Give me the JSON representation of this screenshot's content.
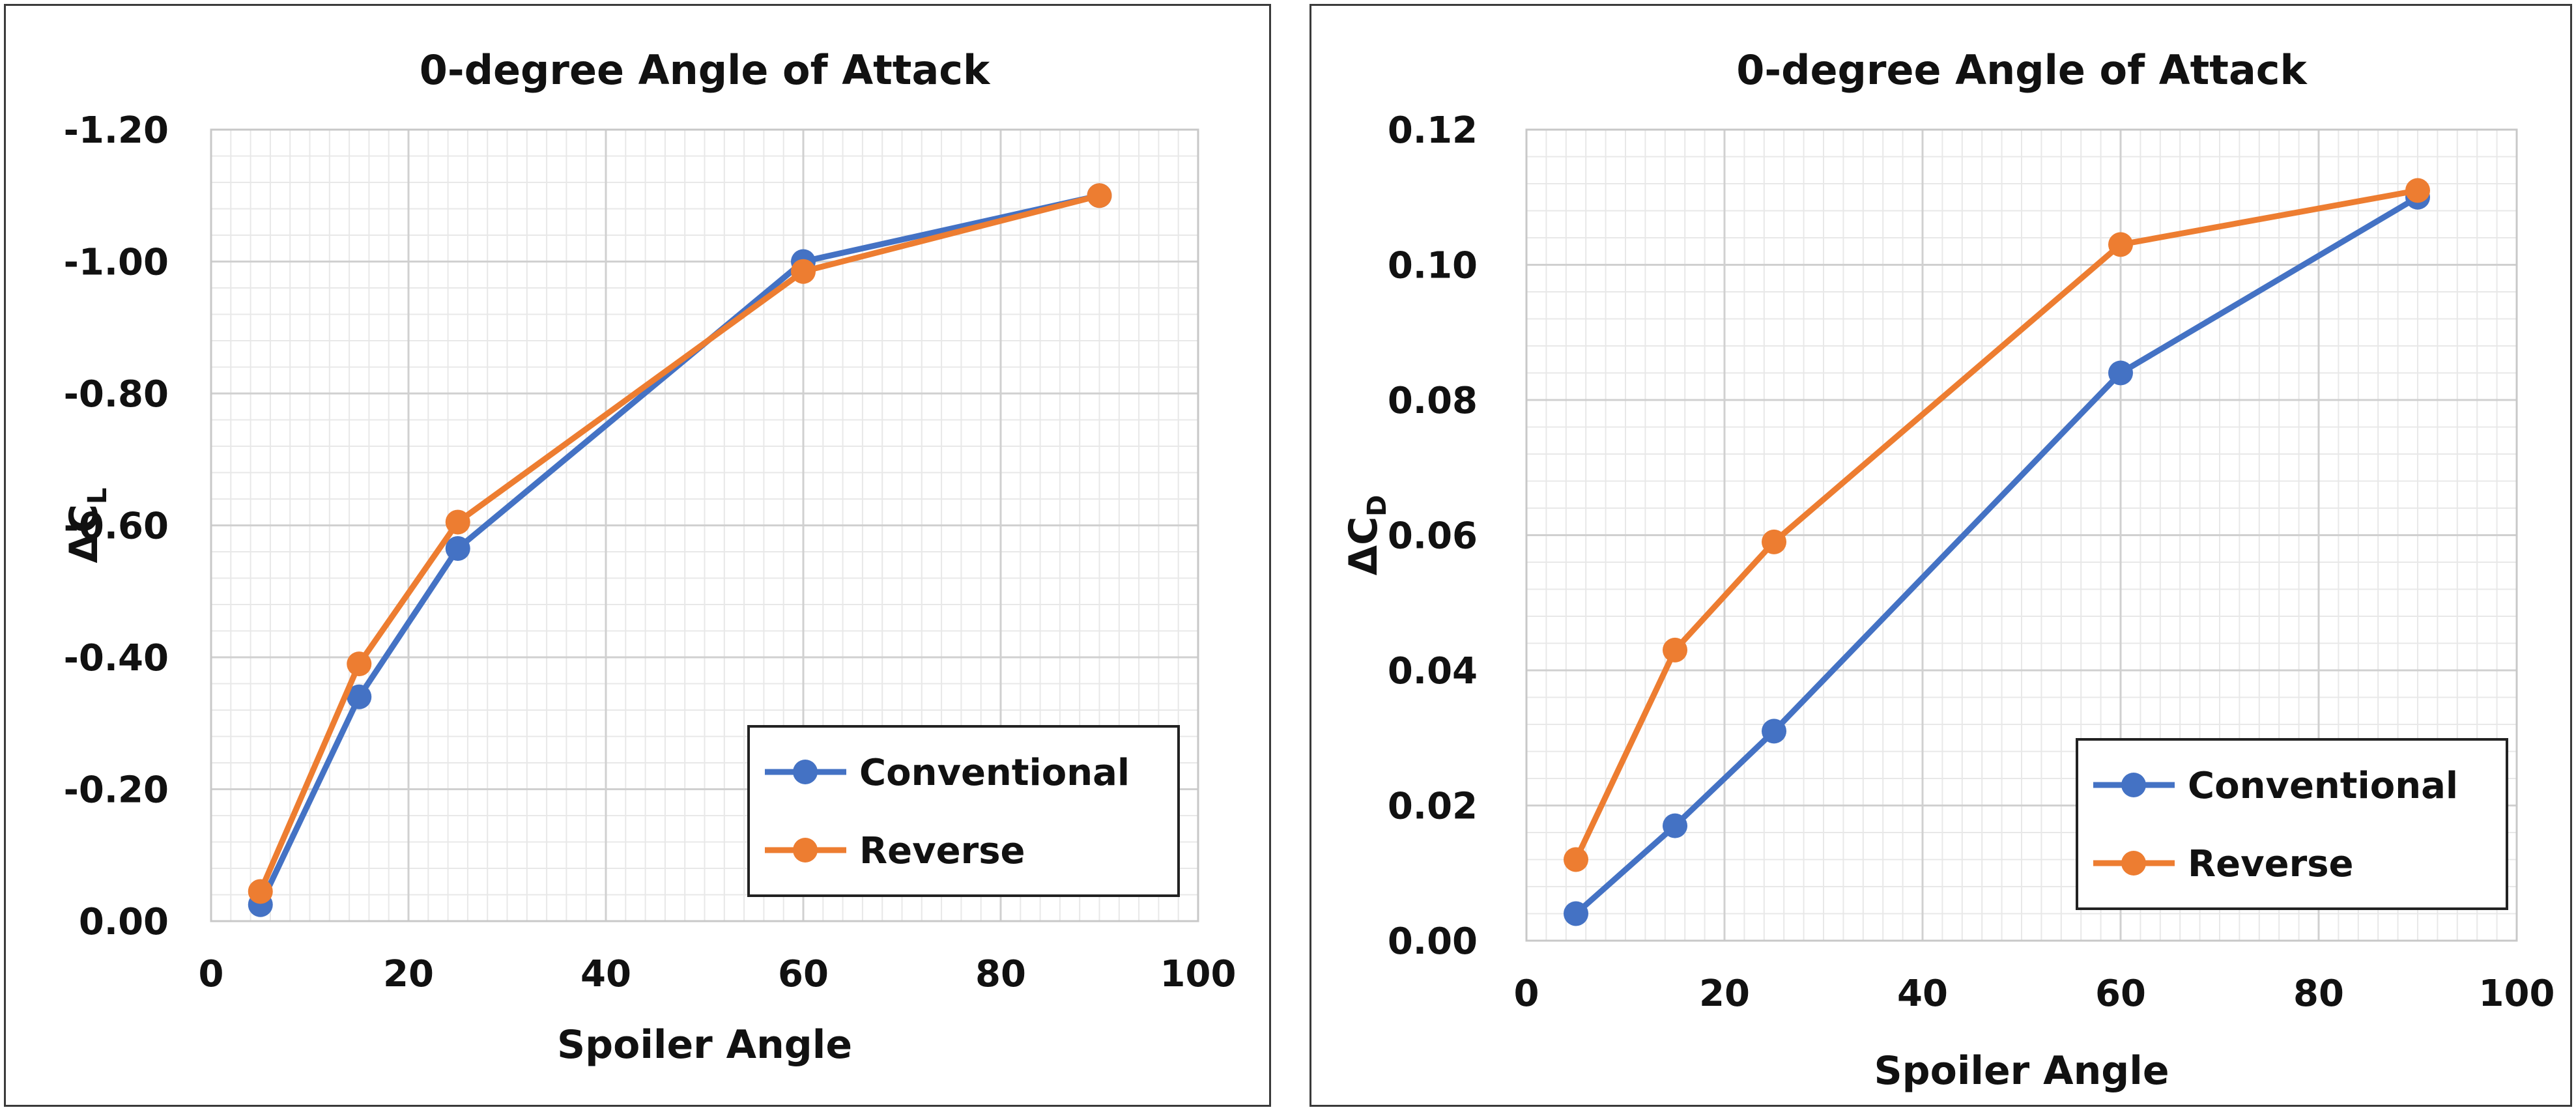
{
  "colors": {
    "conventional": "#4472C4",
    "reverse": "#ED7D31",
    "grid_major": "#d0d0d0",
    "grid_minor": "#e8e8e8"
  },
  "chart_data": [
    {
      "type": "line",
      "title": "0-degree Angle of Attack",
      "xlabel": "Spoiler Angle",
      "ylabel_main": "ΔC",
      "ylabel_sub": "L",
      "xlim": [
        0,
        100
      ],
      "ylim": [
        0,
        -1.2
      ],
      "xticks": [
        0,
        20,
        40,
        60,
        80,
        100
      ],
      "xtick_labels": [
        "0",
        "20",
        "40",
        "60",
        "80",
        "100"
      ],
      "yticks": [
        0,
        -0.2,
        -0.4,
        -0.6,
        -0.8,
        -1.0,
        -1.2
      ],
      "ytick_labels": [
        "0.00",
        "-0.20",
        "-0.40",
        "-0.60",
        "-0.80",
        "-1.00",
        "-1.20"
      ],
      "grid": true,
      "legend_position": "bottom-right",
      "x": [
        5,
        15,
        25,
        60,
        90
      ],
      "series": [
        {
          "name": "Conventional",
          "values": [
            -0.025,
            -0.34,
            -0.565,
            -1.0,
            -1.1
          ]
        },
        {
          "name": "Reverse",
          "values": [
            -0.045,
            -0.39,
            -0.605,
            -0.985,
            -1.1
          ]
        }
      ]
    },
    {
      "type": "line",
      "title": "0-degree Angle of Attack",
      "xlabel": "Spoiler Angle",
      "ylabel_main": "ΔC",
      "ylabel_sub": "D",
      "xlim": [
        0,
        100
      ],
      "ylim": [
        0,
        0.12
      ],
      "xticks": [
        0,
        20,
        40,
        60,
        80,
        100
      ],
      "xtick_labels": [
        "0",
        "20",
        "40",
        "60",
        "80",
        "100"
      ],
      "yticks": [
        0,
        0.02,
        0.04,
        0.06,
        0.08,
        0.1,
        0.12
      ],
      "ytick_labels": [
        "0.00",
        "0.02",
        "0.04",
        "0.06",
        "0.08",
        "0.10",
        "0.12"
      ],
      "grid": true,
      "legend_position": "bottom-right",
      "x": [
        5,
        15,
        25,
        60,
        90
      ],
      "series": [
        {
          "name": "Conventional",
          "values": [
            0.004,
            0.017,
            0.031,
            0.084,
            0.11
          ]
        },
        {
          "name": "Reverse",
          "values": [
            0.012,
            0.043,
            0.059,
            0.103,
            0.111
          ]
        }
      ]
    }
  ]
}
